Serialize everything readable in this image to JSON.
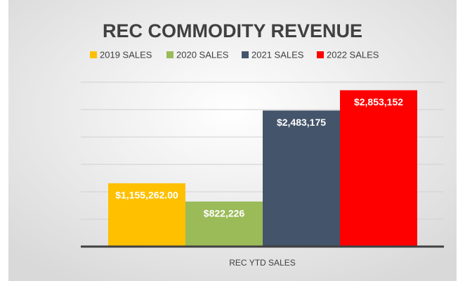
{
  "chart_data": {
    "type": "bar",
    "title": "REC COMMODITY REVENUE",
    "categories": [
      "REC YTD SALES"
    ],
    "series": [
      {
        "name": "2019 SALES",
        "color": "#ffc000",
        "values": [
          1155262
        ],
        "value_labels": [
          "$1,155,262.00"
        ]
      },
      {
        "name": "2020 SALES",
        "color": "#9bbb59",
        "values": [
          822226
        ],
        "value_labels": [
          "$822,226"
        ]
      },
      {
        "name": "2021 SALES",
        "color": "#44546a",
        "values": [
          2483175
        ],
        "value_labels": [
          "$2,483,175"
        ]
      },
      {
        "name": "2022 SALES",
        "color": "#ff0000",
        "values": [
          2853152
        ],
        "value_labels": [
          "$2,853,152"
        ]
      }
    ],
    "ylim": [
      0,
      3000000
    ],
    "yticks": [
      0,
      500000,
      1000000,
      1500000,
      2000000,
      2500000,
      3000000
    ],
    "grid": true,
    "legend": "top"
  }
}
